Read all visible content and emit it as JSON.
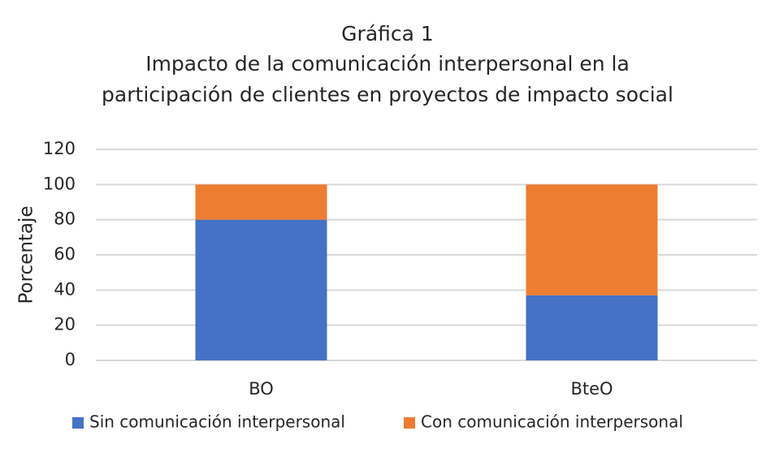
{
  "chart_data": {
    "type": "stacked_bar",
    "title": [
      "Gráfica 1",
      "Impacto de la comunicación interpersonal en la",
      "participación de clientes en proyectos de impacto social"
    ],
    "y_label": "Porcentaje",
    "categories": [
      "BO",
      "BteO"
    ],
    "series": [
      {
        "name": "Sin comunicación interpersonal",
        "color": "#4472c4",
        "values": [
          80,
          37
        ]
      },
      {
        "name": "Con comunicación interpersonal",
        "color": "#ed7d31",
        "values": [
          20,
          63
        ]
      }
    ],
    "ylim": [
      0,
      120
    ],
    "yticks": [
      0,
      20,
      40,
      60,
      80,
      100,
      120
    ],
    "grid": true,
    "legend": "bottom"
  }
}
